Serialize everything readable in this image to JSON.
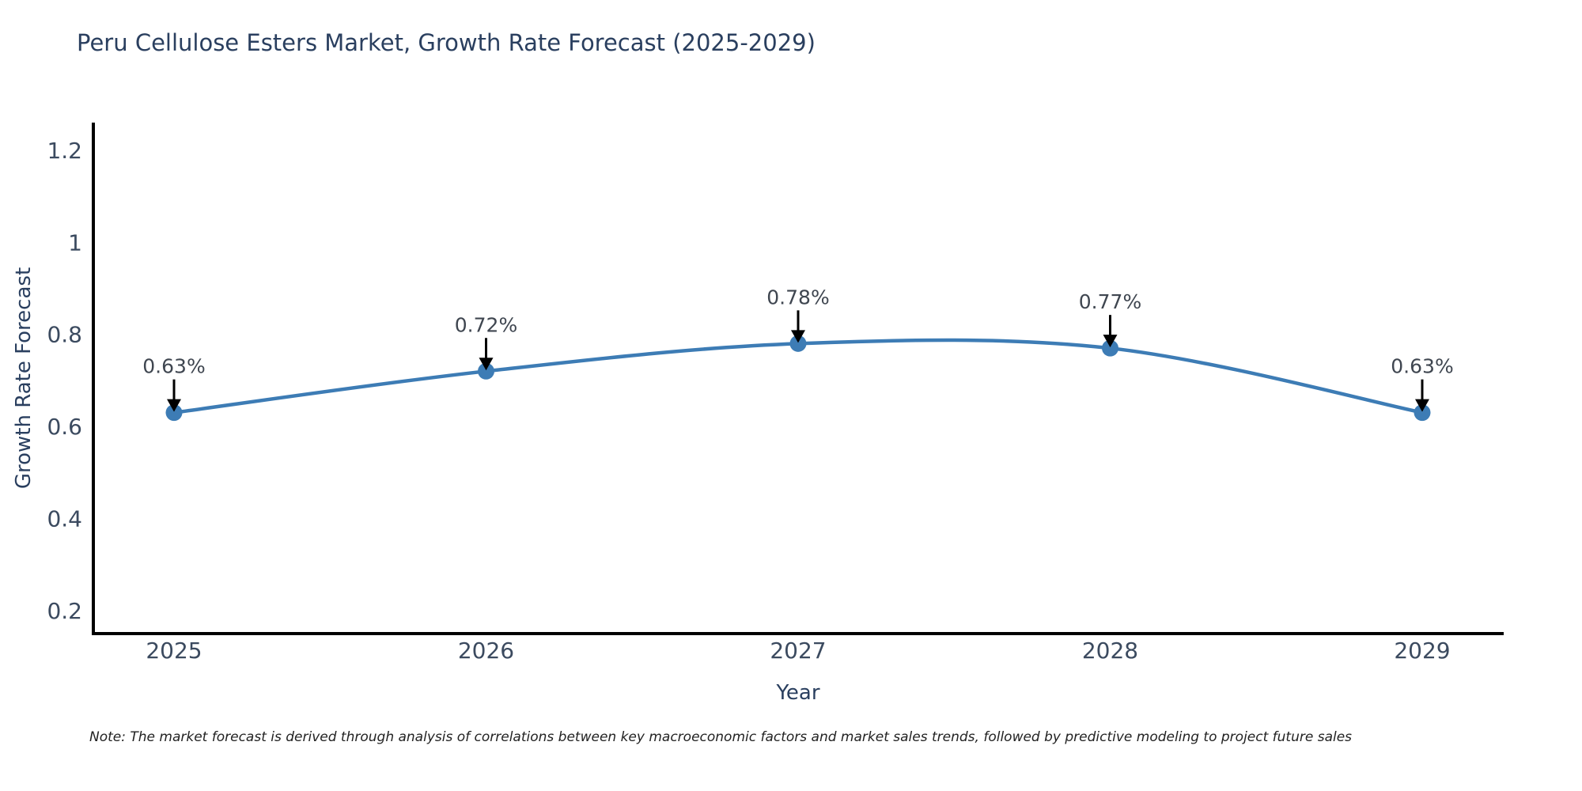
{
  "note": {
    "text": "Note: The market forecast is derived through analysis of correlations between key macroeconomic factors and market sales trends, followed by predictive modeling to project future sales"
  },
  "chart_data": {
    "type": "line",
    "title": "Peru Cellulose Esters Market, Growth Rate Forecast (2025-2029)",
    "xlabel": "Year",
    "ylabel": "Growth Rate Forecast",
    "categories": [
      "2025",
      "2026",
      "2027",
      "2028",
      "2029"
    ],
    "values": [
      0.63,
      0.72,
      0.78,
      0.77,
      0.63
    ],
    "point_labels": [
      "0.63%",
      "0.72%",
      "0.78%",
      "0.77%",
      "0.63%"
    ],
    "series_name": "Growth Rate Forecast",
    "line_shape": "spline",
    "markers": true,
    "grid": false,
    "legend_position": "none",
    "ytick_values": [
      0.2,
      0.4,
      0.6,
      0.8,
      1.0,
      1.2
    ],
    "ytick_labels": [
      "0.2",
      "0.4",
      "0.6",
      "0.8",
      "1",
      "1.2"
    ],
    "ylim": [
      0.15,
      1.26
    ],
    "colors": {
      "line": "#3d7cb5",
      "marker": "#3d7cb5",
      "axis": "#000000",
      "title": "#2a3f5f",
      "axis_title": "#2a3f5f",
      "tick_label": "#3b4a5f",
      "annotation_text": "#3f4650",
      "annotation_arrow": "#000000",
      "background": "#ffffff"
    }
  }
}
